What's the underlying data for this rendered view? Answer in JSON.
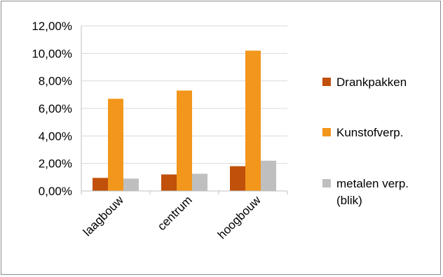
{
  "chart_data": {
    "type": "bar",
    "categories": [
      "laagbouw",
      "centrum",
      "hoogbouw"
    ],
    "series": [
      {
        "name": "Drankpakken",
        "color": "#c0500a",
        "values": [
          0.95,
          1.2,
          1.8
        ]
      },
      {
        "name": "Kunstofverp.",
        "color": "#f2961c",
        "values": [
          6.7,
          7.3,
          10.2
        ]
      },
      {
        "name": "metalen verp. (blik)",
        "legend_lines": [
          "metalen verp.",
          "(blik)"
        ],
        "color": "#bfbfbf",
        "values": [
          0.9,
          1.25,
          2.2
        ]
      }
    ],
    "y_ticks": [
      "0,00%",
      "2,00%",
      "4,00%",
      "6,00%",
      "8,00%",
      "10,00%",
      "12,00%"
    ],
    "ylim": [
      0,
      12
    ],
    "y_unit": "%",
    "grid": true,
    "legend_position": "right",
    "title": "",
    "xlabel": "",
    "ylabel": ""
  }
}
